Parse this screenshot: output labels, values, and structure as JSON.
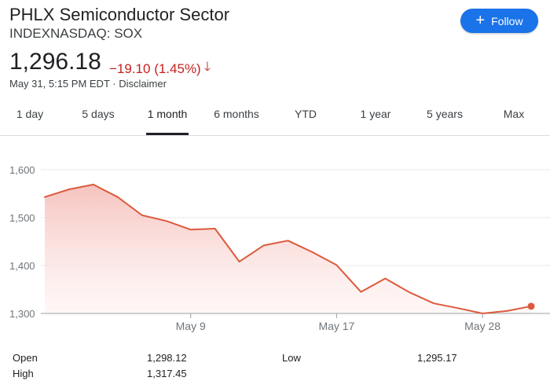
{
  "header": {
    "title": "PHLX Semiconductor Sector",
    "subtitle": "INDEXNASDAQ: SOX",
    "follow_label": "Follow"
  },
  "quote": {
    "price": "1,296.18",
    "change": "−19.10 (1.45%)",
    "timestamp": "May 31, 5:15 PM EDT",
    "disclaimer": "Disclaimer",
    "change_color": "#c5221f"
  },
  "tabs": [
    {
      "label": "1 day"
    },
    {
      "label": "5 days"
    },
    {
      "label": "1 month",
      "active": true
    },
    {
      "label": "6 months"
    },
    {
      "label": "YTD"
    },
    {
      "label": "1 year"
    },
    {
      "label": "5 years"
    },
    {
      "label": "Max"
    }
  ],
  "stats": {
    "open_label": "Open",
    "open_value": "1,298.12",
    "high_label": "High",
    "high_value": "1,317.45",
    "low_label": "Low",
    "low_value": "1,295.17"
  },
  "chart_data": {
    "type": "line",
    "line_color": "#dc5a3c",
    "ylim": [
      1300,
      1600
    ],
    "yticks": [
      {
        "label": "1,600",
        "value": 1600
      },
      {
        "label": "1,500",
        "value": 1500
      },
      {
        "label": "1,400",
        "value": 1400
      },
      {
        "label": "1,300",
        "value": 1300
      }
    ],
    "xticks": [
      {
        "label": "May 9",
        "index": 6
      },
      {
        "label": "May 17",
        "index": 12
      },
      {
        "label": "May 28",
        "index": 18
      }
    ],
    "values": [
      1543,
      1559,
      1569,
      1543,
      1505,
      1493,
      1475,
      1477,
      1408,
      1442,
      1452,
      1428,
      1401,
      1345,
      1373,
      1344,
      1321,
      1311,
      1300,
      1305,
      1315
    ]
  }
}
